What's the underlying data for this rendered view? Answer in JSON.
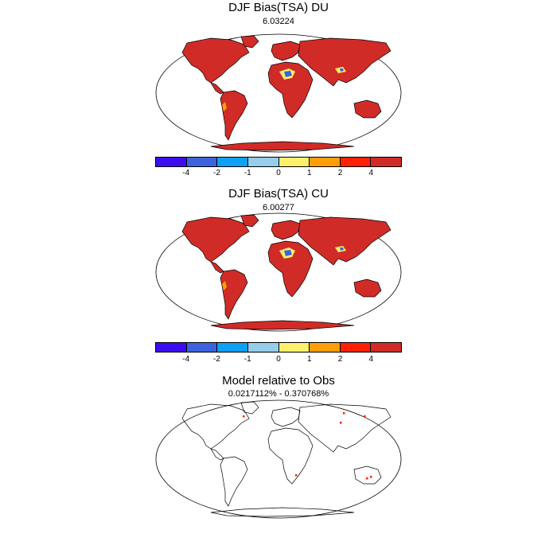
{
  "panels": [
    {
      "title": "DJF Bias(TSA) DU",
      "subtitle": "6.03224"
    },
    {
      "title": "DJF Bias(TSA) CU",
      "subtitle": "6.00277"
    },
    {
      "title": "Model relative to Obs",
      "subtitle": "0.0217112% - 0.370768%"
    }
  ],
  "colorbar": {
    "colors": [
      "#3b0df0",
      "#3c62dc",
      "#0ea0f2",
      "#96cdeb",
      "#fef06a",
      "#fe9e08",
      "#fe2106",
      "#d12b27"
    ],
    "tick_labels": [
      "-4",
      "-2",
      "-1",
      "0",
      "1",
      "2",
      "4"
    ]
  },
  "colors": {
    "land_bias": "#d12b27",
    "ocean": "#ffffff",
    "outline": "#000000"
  }
}
